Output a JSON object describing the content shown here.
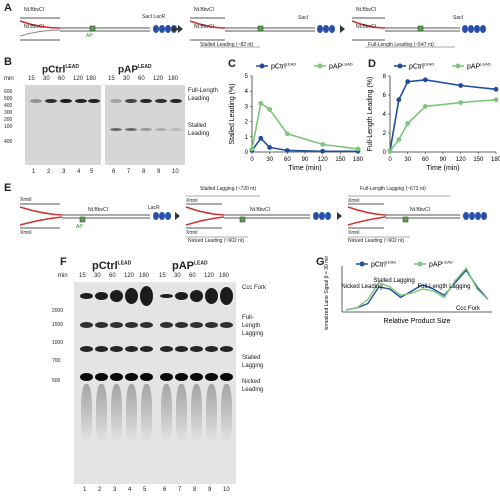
{
  "panels": {
    "A": {
      "label": "A",
      "steps": [
        {
          "left_labels": [
            "Nt.BbvCI",
            "Nt.BbvCI"
          ],
          "right_label": "SacI LacR",
          "ap_label": "AP"
        },
        {
          "left_labels": [
            "Nt.BbvCI",
            "Nt.BbvCI"
          ],
          "right_label": "SacI",
          "caption": "Stalled Leading (~82 nt)"
        },
        {
          "left_labels": [
            "Nt.BbvCI",
            "Nt.BbvCI"
          ],
          "right_label": "SacI",
          "caption": "Full-Length Leading (~547 nt)"
        }
      ]
    },
    "B": {
      "label": "B",
      "gel_left_title": "pCtrl",
      "gel_left_sup": "LEAD",
      "gel_right_title": "pAP",
      "gel_right_sup": "LEAD",
      "min_label": "min",
      "times": [
        "15",
        "30",
        "60",
        "120",
        "180",
        "15",
        "30",
        "60",
        "120",
        "180"
      ],
      "ladder": [
        "600",
        "500",
        "400",
        "300",
        "200",
        "100",
        "400"
      ],
      "lanes": [
        "1",
        "2",
        "3",
        "4",
        "5",
        "6",
        "7",
        "8",
        "9",
        "10"
      ],
      "annotation_full": "Full-Length Leading",
      "annotation_stalled": "Stalled Leading"
    },
    "C": {
      "label": "C",
      "legend": [
        "pCtrl^LEAD",
        "pAP^LEAD"
      ]
    },
    "D": {
      "label": "D",
      "legend": [
        "pCtrl^LEAD",
        "pAP^LEAD"
      ]
    },
    "E": {
      "label": "E",
      "steps": [
        {
          "left_labels": [
            "XmnI",
            "XmnI"
          ],
          "mid_label": "Nt.BbvCI",
          "right_label": "LacR",
          "ap_label": "AP"
        },
        {
          "left_labels": [
            "XmnI",
            "XmnI"
          ],
          "mid_label": "Nt.BbvCI",
          "caption_top": "Stalled Lagging (~720 nt)",
          "caption_bottom": "Nicked Leading (~602 nt)"
        },
        {
          "left_labels": [
            "XmnI",
            "XmnI"
          ],
          "mid_label": "Nt.BbvCI",
          "caption_top": "Full-Length Lagging (~672 nt)",
          "caption_bottom": "Nicked Leading (~602 nt)"
        }
      ]
    },
    "F": {
      "label": "F",
      "gel_left_title": "pCtrl",
      "gel_left_sup": "LEAD",
      "gel_right_title": "pAP",
      "gel_right_sup": "LEAD",
      "min_label": "min",
      "times": [
        "15",
        "30",
        "60",
        "120",
        "180",
        "15",
        "30",
        "60",
        "120",
        "180"
      ],
      "ladder": [
        "2000",
        "1500",
        "1000",
        "700",
        "500"
      ],
      "lanes": [
        "1",
        "2",
        "3",
        "4",
        "5",
        "6",
        "7",
        "8",
        "9",
        "10"
      ],
      "annotations": [
        "Ccc Fork",
        "Full-Length Lagging",
        "Stalled Lagging",
        "Nicked Leading"
      ]
    },
    "G": {
      "label": "G",
      "legend": [
        "pCtrl^LEAD",
        "pAP^LEAD"
      ],
      "annotations": [
        "Stalled Lagging",
        "Nicked Leading",
        "Full-Length Lagging",
        "Ccc Fork"
      ]
    }
  },
  "colors": {
    "ctrl": "#1f4e9c",
    "ap": "#7dc67a",
    "lacr": "#2a4fa8",
    "gel_bg": "#d8d8d8",
    "band": "#111111"
  },
  "chart_data": [
    {
      "type": "line",
      "title": "",
      "xlabel": "Time (min)",
      "ylabel": "Stalled Leading (%)",
      "xlim": [
        0,
        180
      ],
      "ylim": [
        0,
        5
      ],
      "xticks": [
        0,
        30,
        60,
        90,
        120,
        150,
        180
      ],
      "yticks": [
        0,
        1,
        2,
        3,
        4,
        5
      ],
      "series": [
        {
          "name": "pCtrl^LEAD",
          "x": [
            0,
            15,
            30,
            60,
            120,
            180
          ],
          "values": [
            0.1,
            0.9,
            0.3,
            0.1,
            0.05,
            0.05
          ]
        },
        {
          "name": "pAP^LEAD",
          "x": [
            0,
            15,
            30,
            60,
            120,
            180
          ],
          "values": [
            0.2,
            3.2,
            2.8,
            1.2,
            0.5,
            0.2
          ]
        }
      ],
      "legend_position": "top"
    },
    {
      "type": "line",
      "title": "",
      "xlabel": "Time (min)",
      "ylabel": "Full-Length Leading (%)",
      "xlim": [
        0,
        180
      ],
      "ylim": [
        0,
        8
      ],
      "xticks": [
        0,
        30,
        60,
        90,
        120,
        150,
        180
      ],
      "yticks": [
        0,
        2,
        4,
        6,
        8
      ],
      "series": [
        {
          "name": "pCtrl^LEAD",
          "x": [
            0,
            15,
            30,
            60,
            120,
            180
          ],
          "values": [
            0.1,
            5.5,
            7.4,
            7.6,
            7.0,
            6.6
          ]
        },
        {
          "name": "pAP^LEAD",
          "x": [
            0,
            15,
            30,
            60,
            120,
            180
          ],
          "values": [
            0.1,
            1.3,
            3.0,
            4.8,
            5.2,
            5.5
          ]
        }
      ],
      "legend_position": "top"
    },
    {
      "type": "line",
      "title": "",
      "xlabel": "Relative Product Size",
      "ylabel": "Normalized Lane Signal (t = 30 min)",
      "series": [
        {
          "name": "pCtrl^LEAD",
          "values": [
            0.05,
            0.1,
            0.2,
            0.6,
            0.55,
            0.35,
            0.5,
            0.65,
            0.55,
            0.4,
            0.7,
            1.0,
            0.6,
            0.3
          ]
        },
        {
          "name": "pAP^LEAD",
          "values": [
            0.05,
            0.1,
            0.3,
            0.7,
            0.6,
            0.4,
            0.45,
            0.55,
            0.5,
            0.35,
            0.75,
            1.05,
            0.55,
            0.3
          ]
        }
      ],
      "legend_position": "top"
    }
  ]
}
